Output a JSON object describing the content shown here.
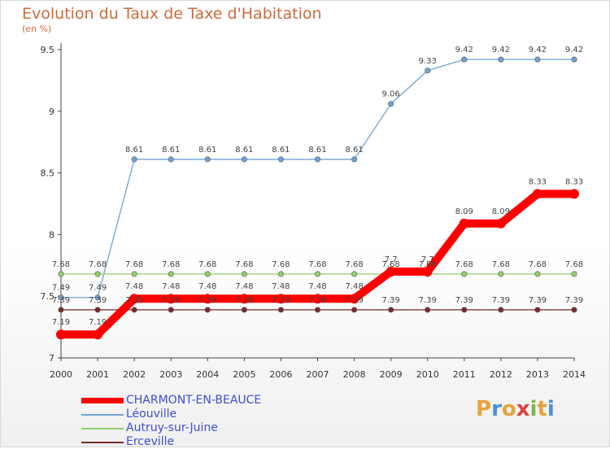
{
  "header": {
    "title": "Evolution du Taux de Taxe d'Habitation",
    "subtitle": "(en %)"
  },
  "logo": {
    "letters": [
      "P",
      "r",
      "o",
      "x",
      "i",
      "t",
      "i"
    ],
    "colors": [
      "#e8a23c",
      "#4a90d9",
      "#e8a23c",
      "#e04040",
      "#7ab648",
      "#e8a23c",
      "#4a90d9"
    ]
  },
  "chart_data": {
    "type": "line",
    "title": "Evolution du Taux de Taxe d'Habitation",
    "ylabel": "(en %)",
    "x": [
      "2000",
      "2001",
      "2002",
      "2003",
      "2004",
      "2005",
      "2006",
      "2007",
      "2008",
      "2009",
      "2010",
      "2011",
      "2012",
      "2013",
      "2014"
    ],
    "ylim": [
      7,
      9.5
    ],
    "yticks": [
      "7",
      "7.5",
      "8",
      "8.5",
      "9",
      "9.5"
    ],
    "grid": false,
    "legend": "bottom-left",
    "series": [
      {
        "name": "CHARMONT-EN-BEAUCE",
        "color": "#ff0000",
        "values": [
          7.19,
          7.19,
          7.48,
          7.48,
          7.48,
          7.48,
          7.48,
          7.48,
          7.48,
          7.7,
          7.7,
          8.09,
          8.09,
          8.33,
          8.33
        ],
        "labels": [
          "7.19",
          "7.19",
          "7.48",
          "7.48",
          "7.48",
          "7.48",
          "7.48",
          "7.48",
          "7.48",
          "7.7",
          "7.7",
          "8.09",
          "8.09",
          "8.33",
          "8.33"
        ]
      },
      {
        "name": "Léouville",
        "color": "#6fa3d4",
        "values": [
          7.49,
          7.49,
          8.61,
          8.61,
          8.61,
          8.61,
          8.61,
          8.61,
          8.61,
          9.06,
          9.33,
          9.42,
          9.42,
          9.42,
          9.42
        ],
        "labels": [
          "7.49",
          "7.49",
          "8.61",
          "8.61",
          "8.61",
          "8.61",
          "8.61",
          "8.61",
          "8.61",
          "9.06",
          "9.33",
          "9.42",
          "9.42",
          "9.42",
          "9.42"
        ]
      },
      {
        "name": "Autruy-sur-Juine",
        "color": "#8fd16a",
        "values": [
          7.68,
          7.68,
          7.68,
          7.68,
          7.68,
          7.68,
          7.68,
          7.68,
          7.68,
          7.68,
          7.68,
          7.68,
          7.68,
          7.68,
          7.68
        ],
        "labels": [
          "7.68",
          "7.68",
          "7.68",
          "7.68",
          "7.68",
          "7.68",
          "7.68",
          "7.68",
          "7.68",
          "7.68",
          "7.68",
          "7.68",
          "7.68",
          "7.68",
          "7.68"
        ]
      },
      {
        "name": "Erceville",
        "color": "#7a2a2a",
        "values": [
          7.39,
          7.39,
          7.39,
          7.39,
          7.39,
          7.39,
          7.39,
          7.39,
          7.39,
          7.39,
          7.39,
          7.39,
          7.39,
          7.39,
          7.39
        ],
        "labels": [
          "7.39",
          "7.39",
          "7.39",
          "7.39",
          "7.39",
          "7.39",
          "7.39",
          "7.39",
          "7.39",
          "7.39",
          "7.39",
          "7.39",
          "7.39",
          "7.39",
          "7.39"
        ]
      }
    ]
  }
}
